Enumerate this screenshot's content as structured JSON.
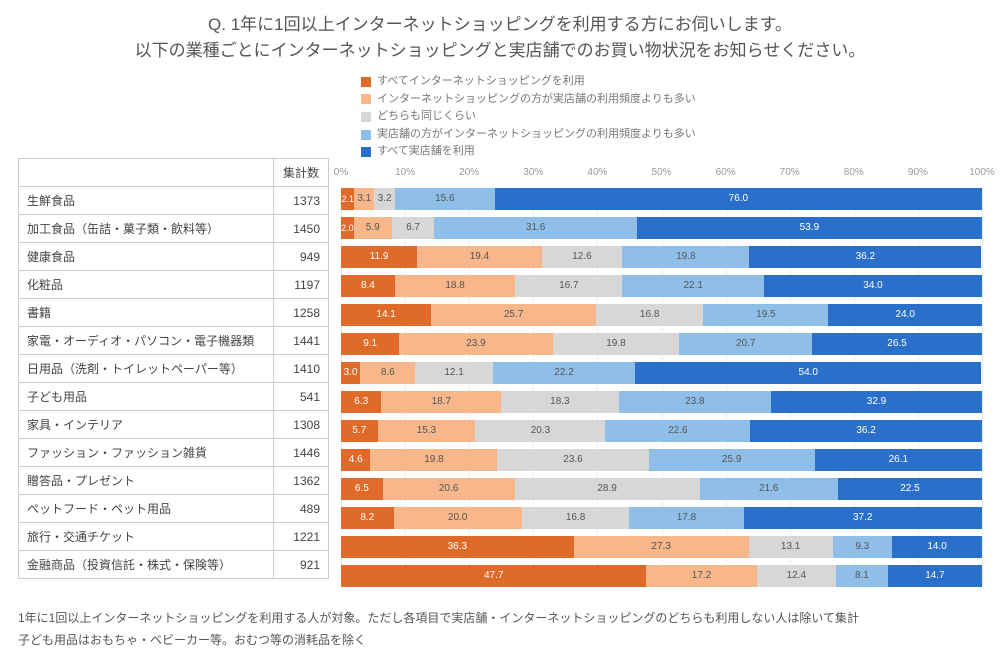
{
  "title_line1": "Q. 1年に1回以上インターネットショッピングを利用する方にお伺いします。",
  "title_line2": "以下の業種ごとにインターネットショッピングと実店舗でのお買い物状況をお知らせください。",
  "count_header": "集計数",
  "legend": [
    {
      "label": "すべてインターネットショッピングを利用",
      "color": "#e06a2a"
    },
    {
      "label": "インターネットショッピングの方が実店舗の利用頻度よりも多い",
      "color": "#f7b78a"
    },
    {
      "label": "どちらも同じくらい",
      "color": "#d7d7d7"
    },
    {
      "label": "実店舗の方がインターネットショッピングの利用頻度よりも多い",
      "color": "#8fbfe8"
    },
    {
      "label": "すべて実店舗を利用",
      "color": "#2a6fc9"
    }
  ],
  "axis_ticks": [
    0,
    10,
    20,
    30,
    40,
    50,
    60,
    70,
    80,
    90,
    100
  ],
  "rows": [
    {
      "category": "生鮮食品",
      "count": 1373,
      "values": [
        2.1,
        3.1,
        3.2,
        15.6,
        76.0
      ]
    },
    {
      "category": "加工食品（缶詰・菓子類・飲料等）",
      "count": 1450,
      "values": [
        2.0,
        5.9,
        6.7,
        31.6,
        53.9
      ]
    },
    {
      "category": "健康食品",
      "count": 949,
      "values": [
        11.9,
        19.4,
        12.6,
        19.8,
        36.2
      ]
    },
    {
      "category": "化粧品",
      "count": 1197,
      "values": [
        8.4,
        18.8,
        16.7,
        22.1,
        34.0
      ]
    },
    {
      "category": "書籍",
      "count": 1258,
      "values": [
        14.1,
        25.7,
        16.8,
        19.5,
        24.0
      ]
    },
    {
      "category": "家電・オーディオ・パソコン・電子機器類",
      "count": 1441,
      "values": [
        9.1,
        23.9,
        19.8,
        20.7,
        26.5
      ]
    },
    {
      "category": "日用品（洗剤・トイレットペーパー等）",
      "count": 1410,
      "values": [
        3.0,
        8.6,
        12.1,
        22.2,
        54.0
      ]
    },
    {
      "category": "子ども用品",
      "count": 541,
      "values": [
        6.3,
        18.7,
        18.3,
        23.8,
        32.9
      ]
    },
    {
      "category": "家具・インテリア",
      "count": 1308,
      "values": [
        5.7,
        15.3,
        20.3,
        22.6,
        36.2
      ]
    },
    {
      "category": "ファッション・ファッション雑貨",
      "count": 1446,
      "values": [
        4.6,
        19.8,
        23.6,
        25.9,
        26.1
      ]
    },
    {
      "category": "贈答品・プレゼント",
      "count": 1362,
      "values": [
        6.5,
        20.6,
        28.9,
        21.6,
        22.5
      ]
    },
    {
      "category": "ペットフード・ペット用品",
      "count": 489,
      "values": [
        8.2,
        20.0,
        16.8,
        17.8,
        37.2
      ]
    },
    {
      "category": "旅行・交通チケット",
      "count": 1221,
      "values": [
        36.3,
        27.3,
        13.1,
        9.3,
        14.0
      ]
    },
    {
      "category": "金融商品（投資信託・株式・保険等）",
      "count": 921,
      "values": [
        47.7,
        17.2,
        12.4,
        8.1,
        14.7
      ]
    }
  ],
  "footnote1": "1年に1回以上インターネットショッピングを利用する人が対象。ただし各項目で実店舗・インターネットショッピングのどちらも利用しない人は除いて集計",
  "footnote2": "子ども用品はおもちゃ・ベビーカー等。おむつ等の消耗品を除く",
  "style": {
    "seg_text_color_dark": "#555555",
    "seg_text_color_light": "#ffffff",
    "label_hide_below": 2.5
  }
}
